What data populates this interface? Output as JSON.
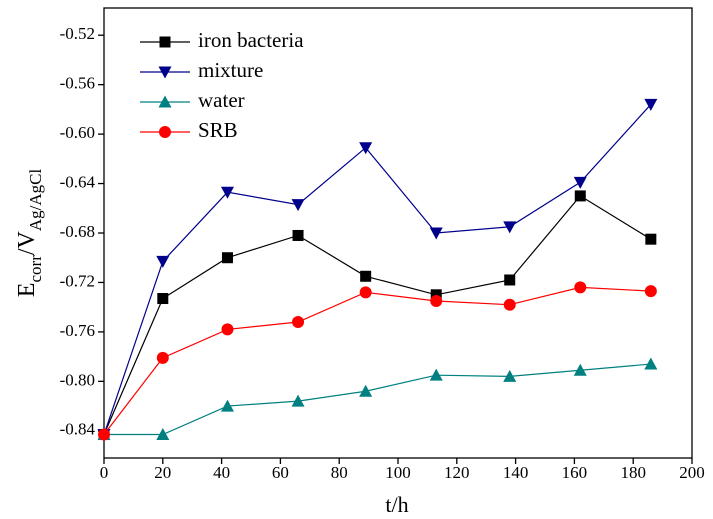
{
  "chart_data": {
    "type": "line",
    "x_label": "t/h",
    "y_label_parts": [
      "E",
      "corr",
      "/V",
      "Ag/AgCl"
    ],
    "x": [
      0,
      20,
      42,
      66,
      89,
      113,
      138,
      162,
      186
    ],
    "series": [
      {
        "name": "iron bacteria",
        "color": "#000000",
        "marker": "square",
        "values": [
          -0.843,
          -0.733,
          -0.7,
          -0.682,
          -0.715,
          -0.73,
          -0.718,
          -0.65,
          -0.685
        ]
      },
      {
        "name": "mixture",
        "color": "#00008b",
        "marker": "triangle-down",
        "values": [
          -0.843,
          -0.703,
          -0.647,
          -0.657,
          -0.611,
          -0.68,
          -0.675,
          -0.639,
          -0.576
        ]
      },
      {
        "name": "water",
        "color": "#008080",
        "marker": "triangle-up",
        "values": [
          -0.843,
          -0.843,
          -0.82,
          -0.816,
          -0.808,
          -0.795,
          -0.796,
          -0.791,
          -0.786
        ]
      },
      {
        "name": "SRB",
        "color": "#ff0000",
        "marker": "circle",
        "values": [
          -0.843,
          -0.781,
          -0.758,
          -0.752,
          -0.728,
          -0.735,
          -0.738,
          -0.724,
          -0.727
        ]
      }
    ],
    "xlim": [
      0,
      200
    ],
    "xticks": [
      0,
      20,
      40,
      60,
      80,
      100,
      120,
      140,
      160,
      180,
      200
    ],
    "ylim": [
      -0.862,
      -0.498
    ],
    "yticks": [
      -0.52,
      -0.56,
      {
        "value": -0.6,
        "label": "-0.60"
      },
      -0.64,
      -0.68,
      -0.72,
      -0.76,
      {
        "value": -0.8,
        "label": "-0.80"
      },
      -0.84
    ],
    "legend": "top-left",
    "grid": false
  }
}
